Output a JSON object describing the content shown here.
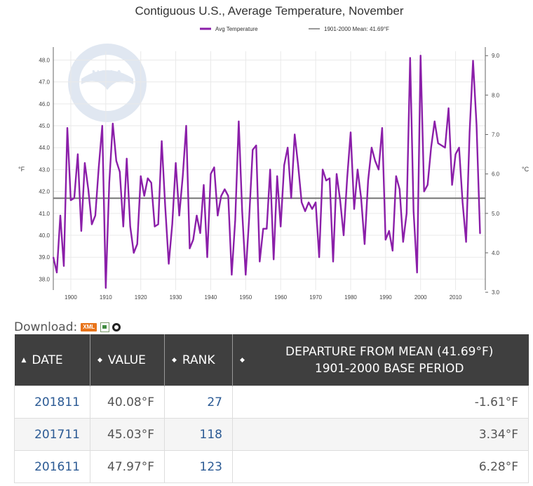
{
  "chart_data": {
    "type": "line",
    "title": "Contiguous U.S., Average Temperature, November",
    "legend": [
      {
        "name": "Avg Temperature",
        "color": "#8b1fa9"
      },
      {
        "name": "1901-2000 Mean: 41.69°F",
        "color": "#777777"
      }
    ],
    "ylabel_left": "°F",
    "ylabel_right": "°C",
    "ylim": [
      37.5,
      48.4
    ],
    "xlim": [
      1895,
      2018.5
    ],
    "yticks": [
      "38.0",
      "39.0",
      "40.0",
      "41.0",
      "42.0",
      "43.0",
      "44.0",
      "45.0",
      "46.0",
      "47.0",
      "48.0"
    ],
    "yticks_right": [
      "3.0",
      "4.0",
      "5.0",
      "6.0",
      "7.0",
      "8.0",
      "9.0"
    ],
    "xticks": [
      "1900",
      "1910",
      "1920",
      "1930",
      "1940",
      "1950",
      "1960",
      "1970",
      "1980",
      "1990",
      "2000",
      "2010"
    ],
    "mean": 41.69,
    "x_start": 1895,
    "x_end": 2018,
    "series": [
      {
        "name": "Avg Temperature",
        "values": [
          39.0,
          38.3,
          40.9,
          38.6,
          44.9,
          41.6,
          41.7,
          43.7,
          40.2,
          43.3,
          42.1,
          40.5,
          40.9,
          43.1,
          45.0,
          37.6,
          42.4,
          45.1,
          43.4,
          42.9,
          40.4,
          43.5,
          40.4,
          39.2,
          39.6,
          42.7,
          41.8,
          42.6,
          42.4,
          40.4,
          40.5,
          44.3,
          41.3,
          38.7,
          40.5,
          43.3,
          40.9,
          42.7,
          45.0,
          39.4,
          39.8,
          40.9,
          40.1,
          42.3,
          39.0,
          42.8,
          43.1,
          40.9,
          41.8,
          42.1,
          41.8,
          38.2,
          40.7,
          45.2,
          41.1,
          38.2,
          40.8,
          43.9,
          44.1,
          38.8,
          40.3,
          40.3,
          43.0,
          38.9,
          42.7,
          40.4,
          43.2,
          44.0,
          41.7,
          44.6,
          43.2,
          41.5,
          41.1,
          41.5,
          41.2,
          41.5,
          39.0,
          43.0,
          42.5,
          42.6,
          38.8,
          42.8,
          41.6,
          40.0,
          42.6,
          44.7,
          41.2,
          43.0,
          41.7,
          39.6,
          42.5,
          44.0,
          43.4,
          43.0,
          44.9,
          39.8,
          40.2,
          39.3,
          42.7,
          42.1,
          39.7,
          41.0,
          48.1,
          41.1,
          38.3,
          48.2,
          42.0,
          42.3,
          44.0,
          45.2,
          44.2,
          44.1,
          44.0,
          45.8,
          42.3,
          43.7,
          44.0,
          41.5,
          39.7,
          44.7,
          47.97,
          45.03,
          40.08
        ]
      }
    ]
  },
  "download": {
    "label": "Download:",
    "xml_label": "XML"
  },
  "table": {
    "headers": [
      "DATE",
      "VALUE",
      "RANK",
      "DEPARTURE FROM MEAN (41.69°F)",
      "1901-2000 BASE PERIOD"
    ],
    "rows": [
      {
        "date": "201811",
        "value": "40.08°F",
        "rank": "27",
        "departure": "-1.61°F"
      },
      {
        "date": "201711",
        "value": "45.03°F",
        "rank": "118",
        "departure": "3.34°F"
      },
      {
        "date": "201611",
        "value": "47.97°F",
        "rank": "123",
        "departure": "6.28°F"
      }
    ]
  }
}
